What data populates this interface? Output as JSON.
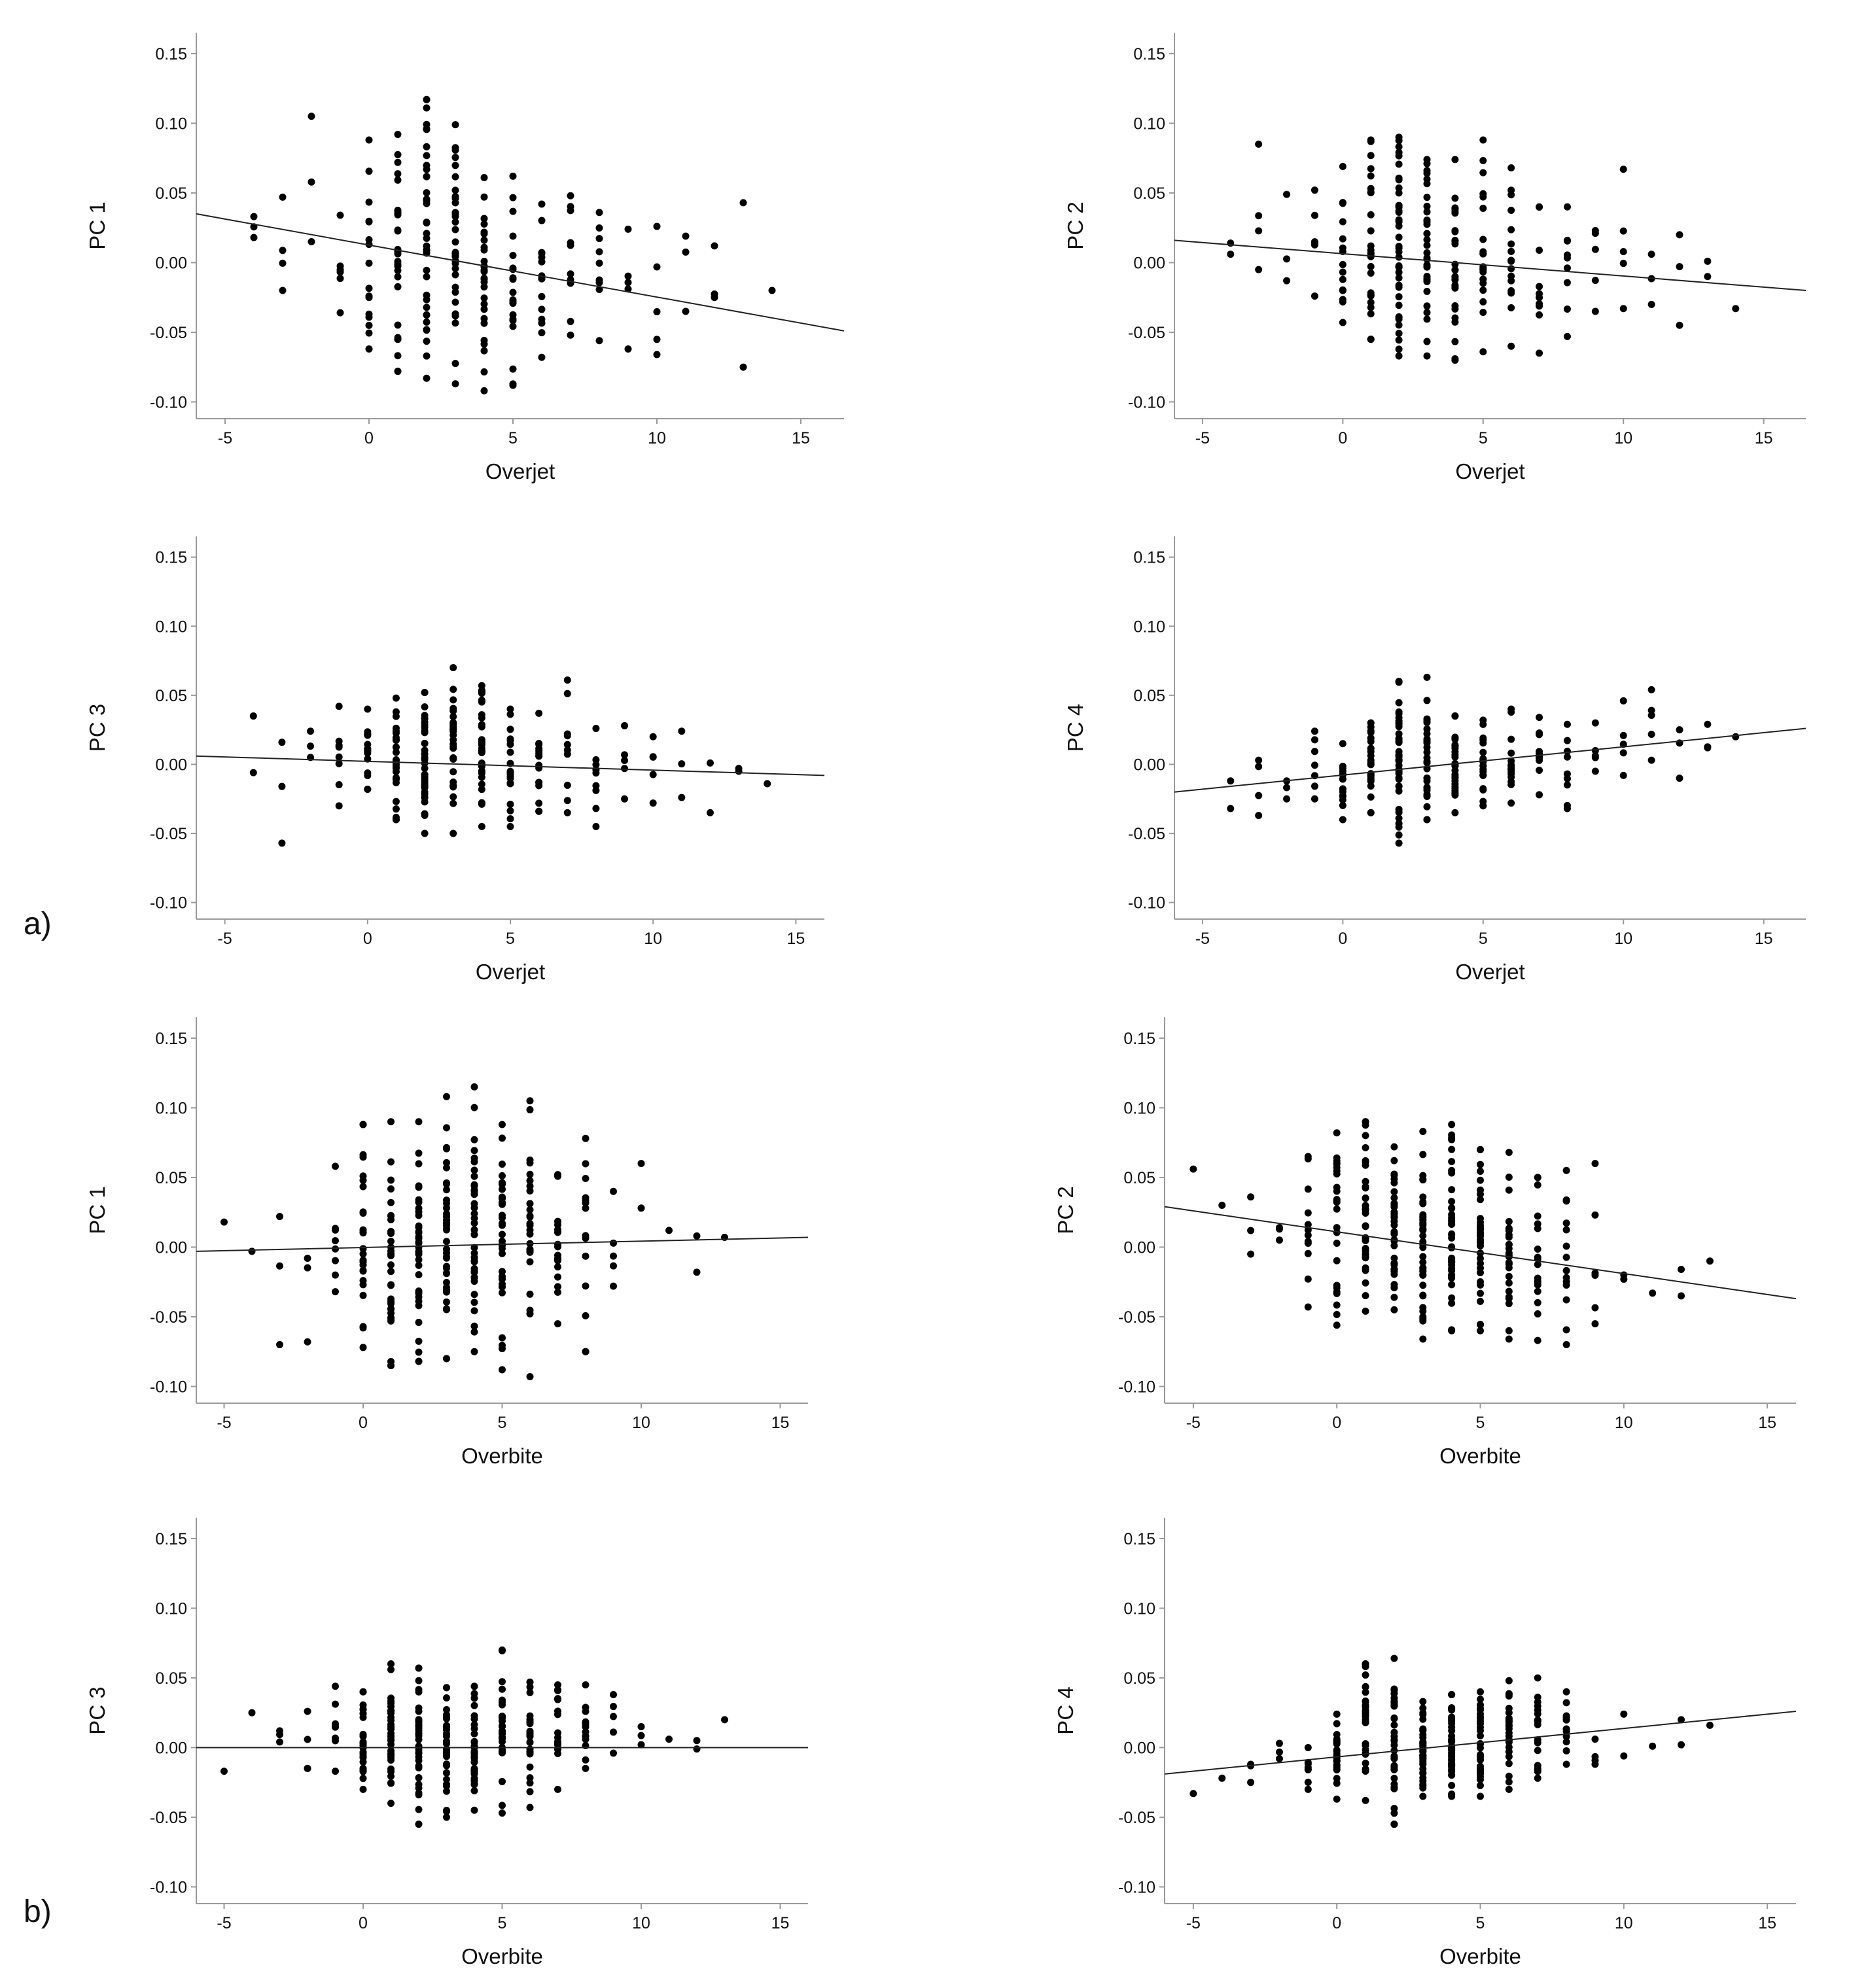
{
  "panel_labels": {
    "a": "a)",
    "b": "b)"
  },
  "chart_data": [
    {
      "type": "scatter",
      "group": "a",
      "xlabel": "Overjet",
      "ylabel": "PC 1",
      "xlim": [
        -6,
        16.5
      ],
      "ylim": [
        -0.112,
        0.165
      ],
      "xticks": [
        "-5",
        "0",
        "5",
        "10",
        "15"
      ],
      "yticks": [
        "-0.10",
        "-0.05",
        "0.00",
        "0.05",
        "0.10",
        "0.15"
      ],
      "trend": {
        "x0": -6,
        "y0": 0.035,
        "x1": 16.5,
        "y1": -0.049
      },
      "spread": [
        [
          -4,
          0.018,
          0.033
        ],
        [
          -3,
          -0.02,
          0.047
        ],
        [
          -2,
          0.015,
          0.105
        ],
        [
          -1,
          -0.036,
          0.034
        ],
        [
          0,
          -0.062,
          0.088
        ],
        [
          1,
          -0.078,
          0.092
        ],
        [
          2,
          -0.083,
          0.117
        ],
        [
          3,
          -0.087,
          0.099
        ],
        [
          4,
          -0.092,
          0.061
        ],
        [
          5,
          -0.088,
          0.062
        ],
        [
          6,
          -0.068,
          0.042
        ],
        [
          7,
          -0.052,
          0.048
        ],
        [
          8,
          -0.056,
          0.036
        ],
        [
          9,
          -0.062,
          0.024
        ],
        [
          10,
          -0.066,
          0.026
        ],
        [
          11,
          -0.035,
          0.019
        ],
        [
          12,
          -0.025,
          0.012
        ],
        [
          13,
          -0.075,
          0.043
        ],
        [
          14,
          -0.02,
          -0.02
        ]
      ],
      "counts": [
        3,
        4,
        3,
        6,
        16,
        28,
        40,
        32,
        30,
        22,
        16,
        10,
        9,
        5,
        5,
        3,
        3,
        2,
        1
      ]
    },
    {
      "type": "scatter",
      "group": "a",
      "xlabel": "Overjet",
      "ylabel": "PC 2",
      "xlim": [
        -6,
        16.5
      ],
      "ylim": [
        -0.112,
        0.165
      ],
      "xticks": [
        "-5",
        "0",
        "5",
        "10",
        "15"
      ],
      "yticks": [
        "-0.10",
        "-0.05",
        "0.00",
        "0.05",
        "0.10",
        "0.15"
      ],
      "trend": {
        "x0": -6,
        "y0": 0.016,
        "x1": 16.5,
        "y1": -0.02
      },
      "spread": [
        [
          -4,
          0.006,
          0.014
        ],
        [
          -3,
          -0.005,
          0.085
        ],
        [
          -2,
          -0.013,
          0.049
        ],
        [
          -1,
          -0.024,
          0.052
        ],
        [
          0,
          -0.043,
          0.069
        ],
        [
          1,
          -0.055,
          0.088
        ],
        [
          2,
          -0.067,
          0.09
        ],
        [
          3,
          -0.067,
          0.074
        ],
        [
          4,
          -0.07,
          0.074
        ],
        [
          5,
          -0.064,
          0.088
        ],
        [
          6,
          -0.06,
          0.068
        ],
        [
          7,
          -0.065,
          0.04
        ],
        [
          8,
          -0.053,
          0.04
        ],
        [
          9,
          -0.035,
          0.023
        ],
        [
          10,
          -0.033,
          0.067
        ],
        [
          11,
          -0.03,
          0.006
        ],
        [
          12,
          -0.045,
          0.02
        ],
        [
          13,
          -0.01,
          0.001
        ],
        [
          14,
          -0.033,
          -0.033
        ]
      ],
      "counts": [
        2,
        4,
        3,
        6,
        16,
        28,
        40,
        32,
        30,
        22,
        16,
        10,
        9,
        5,
        5,
        3,
        3,
        2,
        1
      ]
    },
    {
      "type": "scatter",
      "group": "a",
      "xlabel": "Overjet",
      "ylabel": "PC 3",
      "xlim": [
        -6,
        16
      ],
      "ylim": [
        -0.112,
        0.165
      ],
      "xticks": [
        "-5",
        "0",
        "5",
        "10",
        "15"
      ],
      "yticks": [
        "-0.10",
        "-0.05",
        "0.00",
        "0.05",
        "0.10",
        "0.15"
      ],
      "trend": {
        "x0": -6,
        "y0": 0.006,
        "x1": 16,
        "y1": -0.008
      },
      "spread": [
        [
          -4,
          -0.006,
          0.035
        ],
        [
          -3,
          -0.057,
          0.016
        ],
        [
          -2,
          0.005,
          0.024
        ],
        [
          -1,
          -0.03,
          0.042
        ],
        [
          0,
          -0.018,
          0.04
        ],
        [
          1,
          -0.04,
          0.048
        ],
        [
          2,
          -0.05,
          0.052
        ],
        [
          3,
          -0.05,
          0.07
        ],
        [
          4,
          -0.045,
          0.057
        ],
        [
          5,
          -0.045,
          0.04
        ],
        [
          6,
          -0.034,
          0.037
        ],
        [
          7,
          -0.035,
          0.061
        ],
        [
          8,
          -0.045,
          0.026
        ],
        [
          9,
          -0.025,
          0.028
        ],
        [
          10,
          -0.028,
          0.02
        ],
        [
          11,
          -0.024,
          0.024
        ],
        [
          12,
          -0.035,
          0.001
        ],
        [
          13,
          -0.005,
          -0.003
        ],
        [
          14,
          -0.014,
          -0.014
        ]
      ],
      "counts": [
        2,
        3,
        3,
        8,
        16,
        28,
        40,
        32,
        30,
        22,
        16,
        10,
        9,
        5,
        5,
        3,
        2,
        2,
        1
      ]
    },
    {
      "type": "scatter",
      "group": "a",
      "xlabel": "Overjet",
      "ylabel": "PC 4",
      "xlim": [
        -6,
        16.5
      ],
      "ylim": [
        -0.112,
        0.165
      ],
      "xticks": [
        "-5",
        "0",
        "5",
        "10",
        "15"
      ],
      "yticks": [
        "-0.10",
        "-0.05",
        "0.00",
        "0.05",
        "0.10",
        "0.15"
      ],
      "trend": {
        "x0": -6,
        "y0": -0.02,
        "x1": 16.5,
        "y1": 0.026
      },
      "spread": [
        [
          -4,
          -0.032,
          -0.012
        ],
        [
          -3,
          -0.037,
          0.003
        ],
        [
          -2,
          -0.025,
          -0.012
        ],
        [
          -1,
          -0.025,
          0.024
        ],
        [
          0,
          -0.04,
          0.015
        ],
        [
          1,
          -0.035,
          0.03
        ],
        [
          2,
          -0.057,
          0.06
        ],
        [
          3,
          -0.04,
          0.063
        ],
        [
          4,
          -0.035,
          0.035
        ],
        [
          5,
          -0.03,
          0.032
        ],
        [
          6,
          -0.028,
          0.04
        ],
        [
          7,
          -0.022,
          0.034
        ],
        [
          8,
          -0.032,
          0.029
        ],
        [
          9,
          -0.005,
          0.03
        ],
        [
          10,
          -0.008,
          0.046
        ],
        [
          11,
          0.003,
          0.054
        ],
        [
          12,
          -0.01,
          0.025
        ],
        [
          13,
          0.012,
          0.029
        ],
        [
          14,
          0.02,
          0.02
        ]
      ],
      "counts": [
        2,
        4,
        3,
        7,
        16,
        28,
        40,
        32,
        30,
        22,
        16,
        10,
        9,
        5,
        5,
        5,
        3,
        3,
        1
      ]
    },
    {
      "type": "scatter",
      "group": "b",
      "xlabel": "Overbite",
      "ylabel": "PC 1",
      "xlim": [
        -6,
        16
      ],
      "ylim": [
        -0.112,
        0.165
      ],
      "xticks": [
        "-5",
        "0",
        "5",
        "10",
        "15"
      ],
      "yticks": [
        "-0.10",
        "-0.05",
        "0.00",
        "0.05",
        "0.10",
        "0.15"
      ],
      "trend": {
        "x0": -6,
        "y0": -0.003,
        "x1": 16,
        "y1": 0.007
      },
      "spread": [
        [
          -5,
          0.018,
          0.018
        ],
        [
          -4,
          -0.003,
          -0.003
        ],
        [
          -3,
          -0.07,
          0.022
        ],
        [
          -2,
          -0.068,
          -0.008
        ],
        [
          -1,
          -0.032,
          0.058
        ],
        [
          0,
          -0.072,
          0.088
        ],
        [
          1,
          -0.085,
          0.09
        ],
        [
          2,
          -0.082,
          0.09
        ],
        [
          3,
          -0.08,
          0.108
        ],
        [
          4,
          -0.075,
          0.115
        ],
        [
          5,
          -0.088,
          0.088
        ],
        [
          6,
          -0.093,
          0.105
        ],
        [
          7,
          -0.055,
          0.052
        ],
        [
          8,
          -0.075,
          0.078
        ],
        [
          9,
          -0.028,
          0.04
        ],
        [
          10,
          0.028,
          0.06
        ],
        [
          11,
          0.012,
          0.012
        ],
        [
          12,
          -0.018,
          0.008
        ],
        [
          13,
          0.007,
          0.007
        ]
      ],
      "counts": [
        1,
        1,
        3,
        3,
        8,
        26,
        34,
        38,
        40,
        40,
        34,
        26,
        18,
        14,
        5,
        2,
        1,
        2,
        1
      ]
    },
    {
      "type": "scatter",
      "group": "b",
      "xlabel": "Overbite",
      "ylabel": "PC 2",
      "xlim": [
        -6,
        16
      ],
      "ylim": [
        -0.112,
        0.165
      ],
      "xticks": [
        "-5",
        "0",
        "5",
        "10",
        "15"
      ],
      "yticks": [
        "-0.10",
        "-0.05",
        "0.00",
        "0.05",
        "0.10",
        "0.15"
      ],
      "trend": {
        "x0": -6,
        "y0": 0.029,
        "x1": 16,
        "y1": -0.037
      },
      "spread": [
        [
          -5,
          0.056,
          0.056
        ],
        [
          -4,
          0.03,
          0.03
        ],
        [
          -3,
          -0.005,
          0.036
        ],
        [
          -2,
          0.005,
          0.014
        ],
        [
          -1,
          -0.043,
          0.065
        ],
        [
          0,
          -0.056,
          0.082
        ],
        [
          1,
          -0.046,
          0.09
        ],
        [
          2,
          -0.045,
          0.072
        ],
        [
          3,
          -0.066,
          0.083
        ],
        [
          4,
          -0.06,
          0.088
        ],
        [
          5,
          -0.06,
          0.07
        ],
        [
          6,
          -0.066,
          0.068
        ],
        [
          7,
          -0.067,
          0.05
        ],
        [
          8,
          -0.07,
          0.055
        ],
        [
          9,
          -0.055,
          0.06
        ],
        [
          10,
          -0.023,
          -0.02
        ],
        [
          11,
          -0.033,
          -0.033
        ],
        [
          12,
          -0.035,
          -0.016
        ],
        [
          13,
          -0.01,
          -0.01
        ]
      ],
      "counts": [
        1,
        1,
        3,
        3,
        12,
        26,
        34,
        38,
        40,
        40,
        34,
        26,
        18,
        14,
        6,
        2,
        1,
        2,
        1
      ]
    },
    {
      "type": "scatter",
      "group": "b",
      "xlabel": "Overbite",
      "ylabel": "PC 3",
      "xlim": [
        -6,
        16
      ],
      "ylim": [
        -0.112,
        0.165
      ],
      "xticks": [
        "-5",
        "0",
        "5",
        "10",
        "15"
      ],
      "yticks": [
        "-0.10",
        "-0.05",
        "0.00",
        "0.05",
        "0.10",
        "0.15"
      ],
      "trend": {
        "x0": -6,
        "y0": 0.0,
        "x1": 16,
        "y1": 0.0
      },
      "spread": [
        [
          -5,
          -0.017,
          -0.017
        ],
        [
          -4,
          0.025,
          0.025
        ],
        [
          -3,
          0.004,
          0.012
        ],
        [
          -2,
          -0.015,
          0.026
        ],
        [
          -1,
          -0.017,
          0.044
        ],
        [
          0,
          -0.03,
          0.04
        ],
        [
          1,
          -0.04,
          0.06
        ],
        [
          2,
          -0.055,
          0.057
        ],
        [
          3,
          -0.05,
          0.043
        ],
        [
          4,
          -0.045,
          0.044
        ],
        [
          5,
          -0.047,
          0.07
        ],
        [
          6,
          -0.043,
          0.047
        ],
        [
          7,
          -0.03,
          0.045
        ],
        [
          8,
          -0.015,
          0.045
        ],
        [
          9,
          -0.004,
          0.038
        ],
        [
          10,
          0.002,
          0.015
        ],
        [
          11,
          0.006,
          0.006
        ],
        [
          12,
          -0.001,
          0.005
        ],
        [
          13,
          0.02,
          0.02
        ]
      ],
      "counts": [
        1,
        1,
        3,
        4,
        8,
        26,
        34,
        38,
        40,
        40,
        34,
        26,
        18,
        14,
        5,
        3,
        1,
        2,
        1
      ]
    },
    {
      "type": "scatter",
      "group": "b",
      "xlabel": "Overbite",
      "ylabel": "PC 4",
      "xlim": [
        -6,
        16
      ],
      "ylim": [
        -0.112,
        0.165
      ],
      "xticks": [
        "-5",
        "0",
        "5",
        "10",
        "15"
      ],
      "yticks": [
        "-0.10",
        "-0.05",
        "0.00",
        "0.05",
        "0.10",
        "0.15"
      ],
      "trend": {
        "x0": -6,
        "y0": -0.019,
        "x1": 16,
        "y1": 0.026
      },
      "spread": [
        [
          -5,
          -0.033,
          -0.033
        ],
        [
          -4,
          -0.022,
          -0.022
        ],
        [
          -3,
          -0.025,
          -0.012
        ],
        [
          -2,
          -0.008,
          0.003
        ],
        [
          -1,
          -0.03,
          0.0
        ],
        [
          0,
          -0.037,
          0.024
        ],
        [
          1,
          -0.038,
          0.06
        ],
        [
          2,
          -0.055,
          0.064
        ],
        [
          3,
          -0.035,
          0.033
        ],
        [
          4,
          -0.035,
          0.038
        ],
        [
          5,
          -0.035,
          0.04
        ],
        [
          6,
          -0.03,
          0.048
        ],
        [
          7,
          -0.022,
          0.05
        ],
        [
          8,
          -0.012,
          0.04
        ],
        [
          9,
          -0.012,
          0.006
        ],
        [
          10,
          -0.006,
          0.024
        ],
        [
          11,
          0.001,
          0.001
        ],
        [
          12,
          0.002,
          0.02
        ],
        [
          13,
          0.016,
          0.016
        ]
      ],
      "counts": [
        1,
        1,
        3,
        3,
        8,
        26,
        34,
        38,
        40,
        40,
        34,
        26,
        18,
        14,
        4,
        2,
        1,
        2,
        1
      ]
    }
  ]
}
